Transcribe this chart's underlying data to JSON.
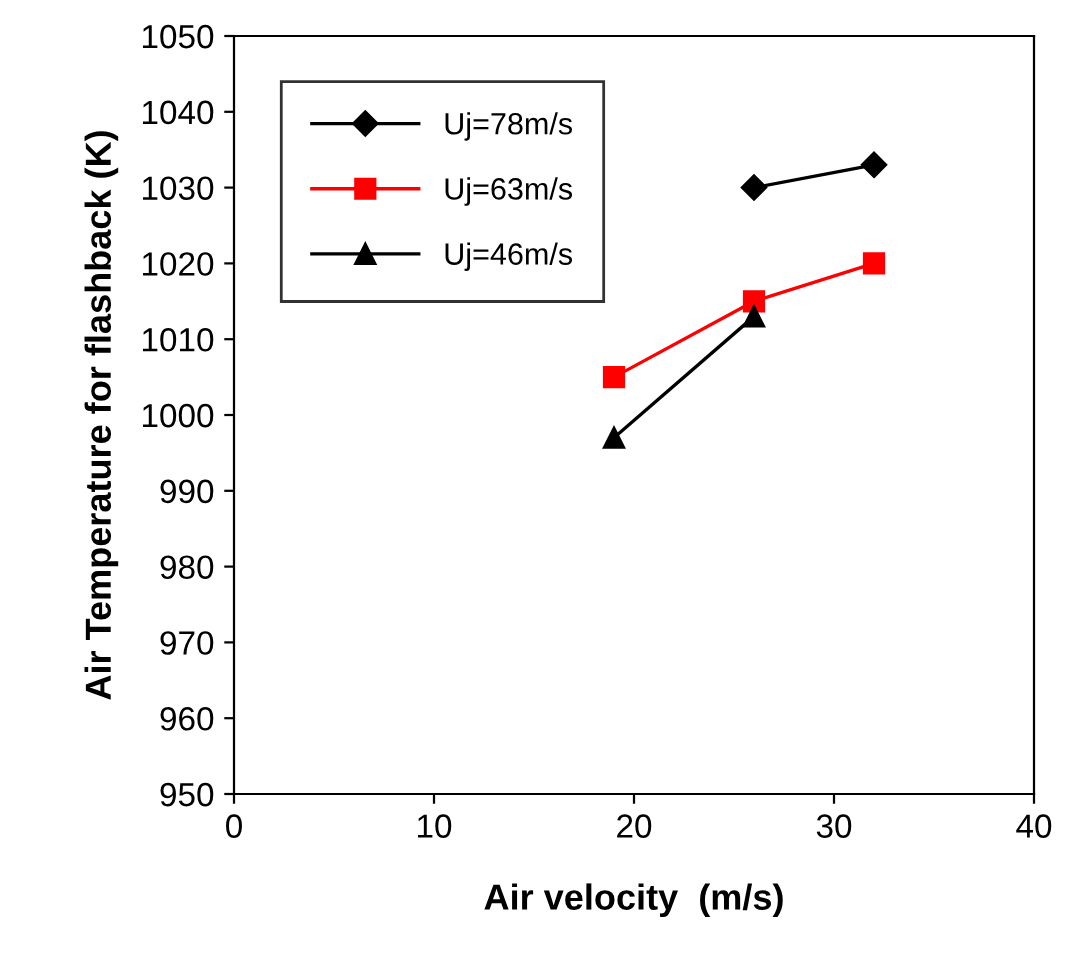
{
  "chart_data": {
    "type": "line",
    "xlabel": "Air velocity  (m/s)",
    "ylabel": "Air Temperature for flashback (K)",
    "xlim": [
      0,
      40
    ],
    "xticks": [
      0,
      10,
      20,
      30,
      40
    ],
    "ylim": [
      950,
      1050
    ],
    "yticks": [
      950,
      960,
      970,
      980,
      990,
      1000,
      1010,
      1020,
      1030,
      1040,
      1050
    ],
    "grid": false,
    "legend": "top left",
    "line_style": "solid",
    "series": [
      {
        "name": "Uj=78m/s",
        "color": "#000000",
        "marker": "diamond",
        "x": [
          26,
          32
        ],
        "values": [
          1030,
          1033
        ]
      },
      {
        "name": "Uj=63m/s",
        "color": "#ff0000",
        "marker": "square",
        "x": [
          19,
          26,
          32
        ],
        "values": [
          1005,
          1015,
          1020
        ]
      },
      {
        "name": "Uj=46m/s",
        "color": "#000000",
        "marker": "triangle",
        "x": [
          19,
          26
        ],
        "values": [
          997,
          1013
        ]
      }
    ]
  }
}
